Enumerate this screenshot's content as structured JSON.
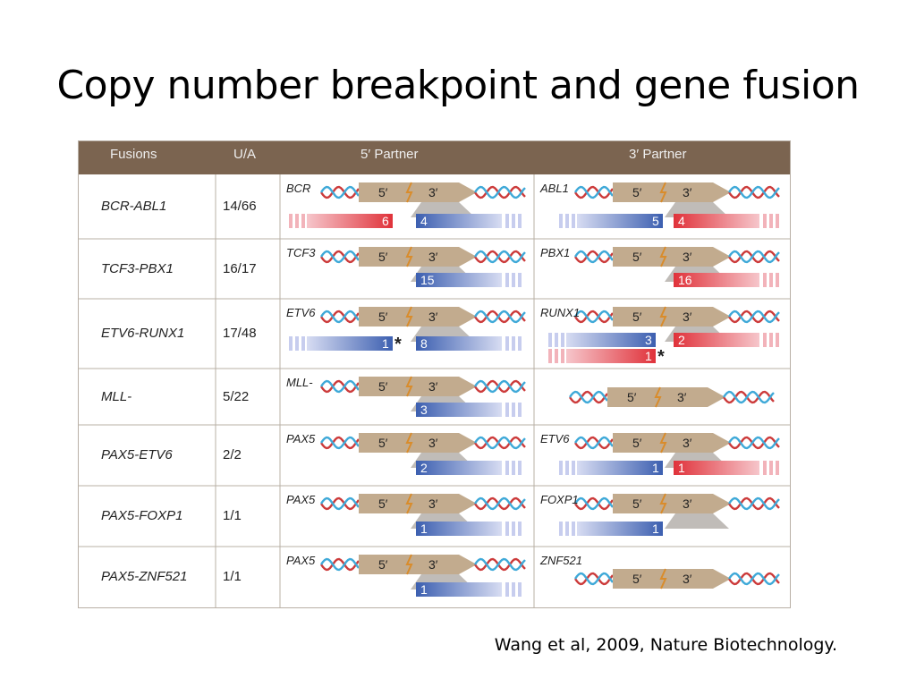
{
  "slide": {
    "title": "Copy number breakpoint and gene fusion",
    "citation": "Wang et al, 2009, Nature Biotechnology."
  },
  "table": {
    "headers": {
      "fusions": "Fusions",
      "ua": "U/A",
      "five_prime": "5′ Partner",
      "three_prime": "3′ Partner"
    },
    "colors": {
      "header_bg": "#7b6450",
      "arrow": "#c2ab8e",
      "red_seg": "#e0323a",
      "blue_seg": "#3c5fb0",
      "grid": "#b9b0a6"
    },
    "rows": [
      {
        "fusion": "BCR-ABL1",
        "ua": "14/66",
        "five_gene": "BCR",
        "three_gene": "ABL1"
      },
      {
        "fusion": "TCF3-PBX1",
        "ua": "16/17",
        "five_gene": "TCF3",
        "three_gene": "PBX1"
      },
      {
        "fusion": "ETV6-RUNX1",
        "ua": "17/48",
        "five_gene": "ETV6",
        "three_gene": "RUNX1"
      },
      {
        "fusion": "MLL-",
        "ua": "5/22",
        "five_gene": "MLL-",
        "three_gene": ""
      },
      {
        "fusion": "PAX5-ETV6",
        "ua": "2/2",
        "five_gene": "PAX5",
        "three_gene": "ETV6"
      },
      {
        "fusion": "PAX5-FOXP1",
        "ua": "1/1",
        "five_gene": "PAX5",
        "three_gene": "FOXP1"
      },
      {
        "fusion": "PAX5-ZNF521",
        "ua": "1/1",
        "five_gene": "PAX5",
        "three_gene": "ZNF521"
      }
    ],
    "arrow_labels": {
      "five": "5′",
      "three": "3′"
    },
    "segment_counts": {
      "five": [
        [
          "6",
          "4"
        ],
        [
          "",
          "15"
        ],
        [
          "1",
          "8"
        ],
        [
          "",
          "3"
        ],
        [
          "",
          "2"
        ],
        [
          "",
          "1"
        ],
        [
          "",
          "1"
        ]
      ],
      "three": [
        [
          "5",
          "4"
        ],
        [
          "",
          "16"
        ],
        [
          "3",
          "2"
        ],
        [
          "",
          ""
        ],
        [
          "1",
          "1"
        ],
        [
          "1",
          ""
        ],
        [
          "",
          ""
        ]
      ]
    },
    "extra": {
      "runx1_second": "1",
      "asterisk": "*"
    }
  }
}
